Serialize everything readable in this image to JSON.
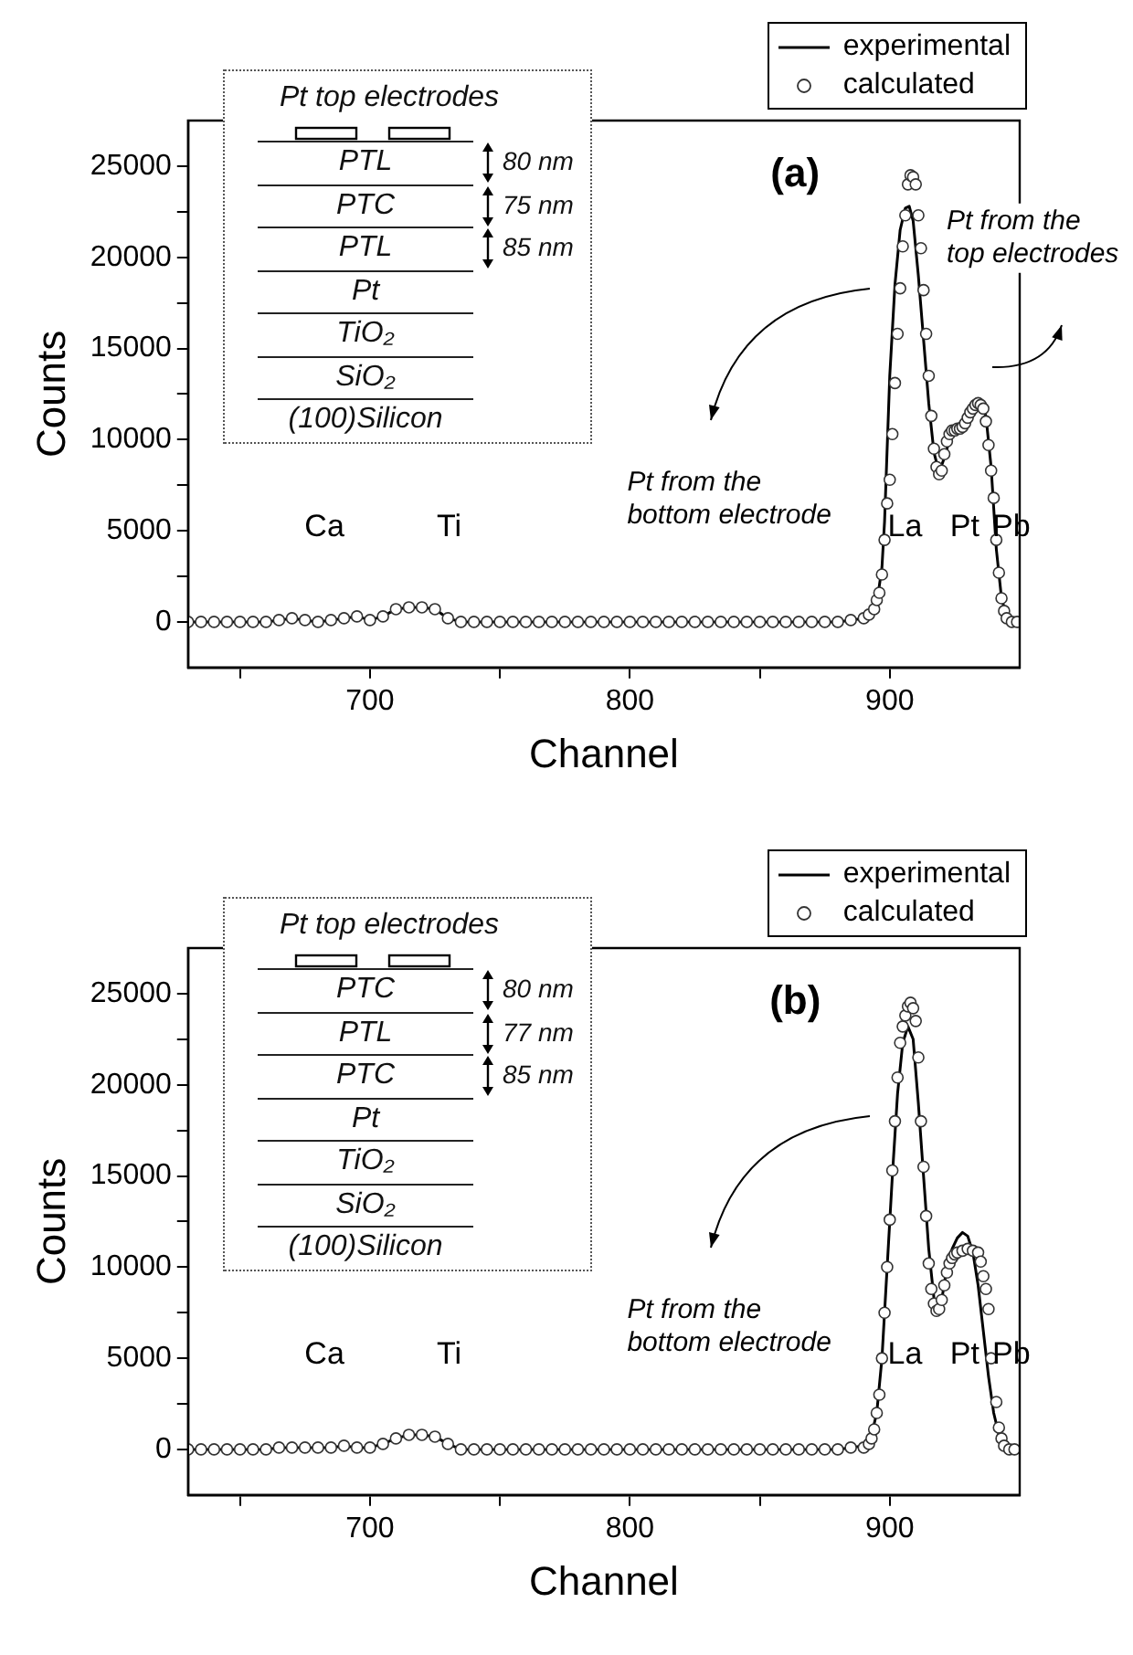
{
  "chart_data": [
    {
      "type": "line",
      "title": "(a)",
      "xlabel": "Channel",
      "ylabel": "Counts",
      "xlim": [
        630,
        950
      ],
      "ylim": [
        -2500,
        27500
      ],
      "xticks": [
        {
          "value": 650,
          "label": null
        },
        700,
        {
          "value": 750,
          "label": null
        },
        800,
        {
          "value": 850,
          "label": null
        },
        900
      ],
      "yticks": [
        0,
        {
          "value": 2500,
          "label": null
        },
        5000,
        {
          "value": 7500,
          "label": null
        },
        10000,
        {
          "value": 12500,
          "label": null
        },
        15000,
        {
          "value": 17500,
          "label": null
        },
        20000,
        {
          "value": 22500,
          "label": null
        },
        25000
      ],
      "legend": "top right",
      "annotations": [
        "Ca",
        "Ti",
        "La",
        "Pt",
        "Pb",
        "Pt from the bottom electrode",
        "Pt from the top electrodes"
      ],
      "series": [
        {
          "name": "experimental",
          "type": "line",
          "color": "#000000",
          "marker": "none",
          "x": [
            630,
            640,
            650,
            660,
            665,
            670,
            675,
            680,
            685,
            690,
            695,
            700,
            705,
            710,
            715,
            720,
            725,
            730,
            735,
            740,
            760,
            780,
            800,
            820,
            840,
            860,
            880,
            885,
            890,
            893,
            895,
            897,
            898,
            900,
            902,
            904,
            906,
            907.5,
            909,
            911,
            913,
            915,
            917,
            919,
            921,
            923,
            925,
            928,
            930,
            933,
            935,
            937,
            939,
            941,
            943,
            945,
            947,
            950
          ],
          "values": [
            0,
            0,
            0,
            0,
            100,
            200,
            100,
            0,
            100,
            200,
            300,
            100,
            300,
            700,
            800,
            800,
            700,
            200,
            0,
            0,
            0,
            0,
            0,
            0,
            0,
            0,
            0,
            100,
            200,
            500,
            1000,
            3000,
            5500,
            13500,
            18500,
            21500,
            22700,
            22800,
            22000,
            19000,
            15500,
            12000,
            9300,
            8200,
            9000,
            10000,
            10500,
            10600,
            11000,
            11800,
            12000,
            11300,
            8500,
            4000,
            1300,
            300,
            0,
            0
          ]
        },
        {
          "name": "calculated",
          "type": "scatter",
          "color": "#333333",
          "marker": "circle",
          "x": [
            630,
            635,
            640,
            645,
            650,
            655,
            660,
            665,
            670,
            675,
            680,
            685,
            690,
            695,
            700,
            705,
            710,
            715,
            720,
            725,
            730,
            735,
            740,
            745,
            750,
            755,
            760,
            765,
            770,
            775,
            780,
            785,
            790,
            795,
            800,
            805,
            810,
            815,
            820,
            825,
            830,
            835,
            840,
            845,
            850,
            855,
            860,
            865,
            870,
            875,
            880,
            885,
            890,
            892,
            894,
            895,
            896,
            897,
            898,
            899,
            900,
            901,
            902,
            903,
            904,
            905,
            906,
            907,
            908,
            909,
            910,
            911,
            912,
            913,
            914,
            915,
            916,
            917,
            918,
            919,
            920,
            921,
            922,
            923,
            924,
            925,
            926,
            927,
            928,
            929,
            930,
            931,
            932,
            933,
            934,
            935,
            936,
            937,
            938,
            939,
            940,
            941,
            942,
            943,
            944,
            945,
            947,
            949
          ],
          "values": [
            0,
            0,
            0,
            0,
            0,
            0,
            0,
            100,
            200,
            100,
            0,
            100,
            200,
            300,
            100,
            300,
            700,
            800,
            800,
            700,
            200,
            0,
            0,
            0,
            0,
            0,
            0,
            0,
            0,
            0,
            0,
            0,
            0,
            0,
            0,
            0,
            0,
            0,
            0,
            0,
            0,
            0,
            0,
            0,
            0,
            0,
            0,
            0,
            0,
            0,
            0,
            100,
            200,
            400,
            700,
            1200,
            1600,
            2600,
            4500,
            6500,
            7800,
            10300,
            13100,
            15800,
            18300,
            20600,
            22300,
            24000,
            24500,
            24400,
            24000,
            22300,
            20500,
            18200,
            15800,
            13500,
            11300,
            9500,
            8500,
            8100,
            8300,
            9200,
            9900,
            10300,
            10500,
            10500,
            10600,
            10600,
            10700,
            10900,
            11200,
            11500,
            11700,
            11900,
            12000,
            11900,
            11700,
            11000,
            9700,
            8300,
            6800,
            4500,
            2700,
            1300,
            600,
            200,
            0,
            0
          ]
        }
      ]
    },
    {
      "type": "other",
      "title": "Pt top electrodes",
      "annotations": [
        "PTL",
        "PTC",
        "PTL",
        "Pt",
        "TiO₂",
        "SiO₂",
        "(100)Silicon",
        "80 nm",
        "75 nm",
        "85 nm"
      ]
    },
    {
      "type": "line",
      "title": "(b)",
      "xlabel": "Channel",
      "ylabel": "Counts",
      "xlim": [
        630,
        950
      ],
      "ylim": [
        -2500,
        27500
      ],
      "xticks": [
        {
          "value": 650,
          "label": null
        },
        700,
        {
          "value": 750,
          "label": null
        },
        800,
        {
          "value": 850,
          "label": null
        },
        900
      ],
      "yticks": [
        0,
        {
          "value": 2500,
          "label": null
        },
        5000,
        {
          "value": 7500,
          "label": null
        },
        10000,
        {
          "value": 12500,
          "label": null
        },
        15000,
        {
          "value": 17500,
          "label": null
        },
        20000,
        {
          "value": 22500,
          "label": null
        },
        25000
      ],
      "legend": "top right",
      "annotations": [
        "Ca",
        "Ti",
        "La",
        "Pt",
        "Pb",
        "Pt from the bottom electrode"
      ],
      "series": [
        {
          "name": "experimental",
          "type": "line",
          "color": "#000000",
          "marker": "none",
          "x": [
            630,
            640,
            650,
            660,
            665,
            670,
            675,
            680,
            685,
            690,
            695,
            700,
            705,
            710,
            715,
            720,
            725,
            730,
            735,
            740,
            760,
            780,
            800,
            820,
            840,
            860,
            880,
            885,
            890,
            893,
            895,
            897,
            899,
            901,
            903,
            905,
            907,
            909,
            911,
            913,
            915,
            917,
            918,
            920,
            922,
            924,
            926,
            928,
            930,
            932,
            934,
            936,
            938,
            940,
            942,
            944,
            946,
            950
          ],
          "values": [
            0,
            0,
            0,
            0,
            100,
            100,
            100,
            100,
            100,
            200,
            100,
            100,
            300,
            600,
            800,
            800,
            700,
            300,
            0,
            0,
            0,
            0,
            0,
            0,
            0,
            0,
            0,
            100,
            200,
            800,
            2000,
            5000,
            10000,
            15000,
            19500,
            22300,
            23200,
            22500,
            19000,
            15000,
            11000,
            8300,
            7400,
            8200,
            10000,
            11000,
            11600,
            11900,
            11700,
            10800,
            9000,
            6500,
            4000,
            2000,
            800,
            200,
            0,
            0
          ]
        },
        {
          "name": "calculated",
          "type": "scatter",
          "color": "#333333",
          "marker": "circle",
          "x": [
            630,
            635,
            640,
            645,
            650,
            655,
            660,
            665,
            670,
            675,
            680,
            685,
            690,
            695,
            700,
            705,
            710,
            715,
            720,
            725,
            730,
            735,
            740,
            745,
            750,
            755,
            760,
            765,
            770,
            775,
            780,
            785,
            790,
            795,
            800,
            805,
            810,
            815,
            820,
            825,
            830,
            835,
            840,
            845,
            850,
            855,
            860,
            865,
            870,
            875,
            880,
            885,
            890,
            892,
            893,
            894,
            895,
            896,
            897,
            898,
            899,
            900,
            901,
            902,
            903,
            904,
            905,
            906,
            907,
            908,
            909,
            910,
            911,
            912,
            913,
            914,
            915,
            916,
            917,
            918,
            919,
            920,
            921,
            922,
            923,
            924,
            925,
            926,
            928,
            930,
            932,
            934,
            935,
            936,
            937,
            938,
            939,
            941,
            942,
            943,
            944,
            946,
            948
          ],
          "values": [
            0,
            0,
            0,
            0,
            0,
            0,
            0,
            100,
            100,
            100,
            100,
            100,
            200,
            100,
            100,
            300,
            600,
            800,
            800,
            700,
            300,
            0,
            0,
            0,
            0,
            0,
            0,
            0,
            0,
            0,
            0,
            0,
            0,
            0,
            0,
            0,
            0,
            0,
            0,
            0,
            0,
            0,
            0,
            0,
            0,
            0,
            0,
            0,
            0,
            0,
            0,
            100,
            100,
            300,
            600,
            1100,
            2000,
            3000,
            5000,
            7500,
            10000,
            12600,
            15300,
            18000,
            20400,
            22300,
            23200,
            23800,
            24300,
            24500,
            24200,
            23500,
            21500,
            18000,
            15500,
            12800,
            10200,
            8800,
            8000,
            7600,
            7700,
            8200,
            9000,
            9700,
            10200,
            10500,
            10700,
            10800,
            10900,
            11000,
            10900,
            10800,
            10300,
            9500,
            8800,
            7700,
            5000,
            2600,
            1200,
            600,
            200,
            0,
            0
          ]
        }
      ]
    },
    {
      "type": "other",
      "title": "Pt top electrodes",
      "annotations": [
        "PTC",
        "PTL",
        "PTC",
        "Pt",
        "TiO₂",
        "SiO₂",
        "(100)Silicon",
        "80 nm",
        "77 nm",
        "85 nm"
      ]
    }
  ]
}
